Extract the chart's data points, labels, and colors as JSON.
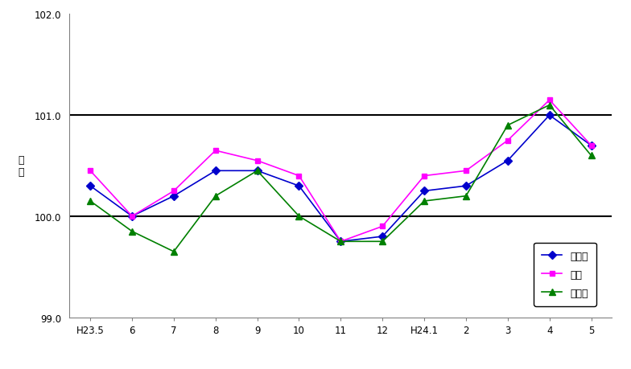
{
  "x_labels": [
    "H23.5",
    "6",
    "7",
    "8",
    "9",
    "10",
    "11",
    "12",
    "H24.1",
    "2",
    "3",
    "4",
    "5"
  ],
  "x_positions": [
    0,
    1,
    2,
    3,
    4,
    5,
    6,
    7,
    8,
    9,
    10,
    11,
    12
  ],
  "series_order": [
    "三重県",
    "津市",
    "松阪市"
  ],
  "series": {
    "三重県": {
      "values": [
        100.3,
        100.0,
        100.2,
        100.45,
        100.45,
        100.3,
        99.75,
        99.8,
        100.25,
        100.3,
        100.55,
        101.0,
        100.7
      ],
      "color": "#0000CC",
      "marker": "D",
      "markersize": 5,
      "linewidth": 1.2
    },
    "津市": {
      "values": [
        100.45,
        100.0,
        100.25,
        100.65,
        100.55,
        100.4,
        99.75,
        99.9,
        100.4,
        100.45,
        100.75,
        101.15,
        100.7
      ],
      "color": "#FF00FF",
      "marker": "s",
      "markersize": 5,
      "linewidth": 1.2
    },
    "松阪市": {
      "values": [
        100.15,
        99.85,
        99.65,
        100.2,
        100.45,
        100.0,
        99.75,
        99.75,
        100.15,
        100.2,
        100.9,
        101.1,
        100.6
      ],
      "color": "#008000",
      "marker": "^",
      "markersize": 6,
      "linewidth": 1.2
    }
  },
  "ylabel": "指\n数",
  "ylim": [
    99.0,
    102.0
  ],
  "yticks": [
    99.0,
    100.0,
    101.0,
    102.0
  ],
  "hlines": [
    100.0,
    101.0
  ],
  "background_color": "#ffffff",
  "border_color": "#808080",
  "tick_fontsize": 8.5,
  "label_fontsize": 9,
  "legend_fontsize": 9
}
